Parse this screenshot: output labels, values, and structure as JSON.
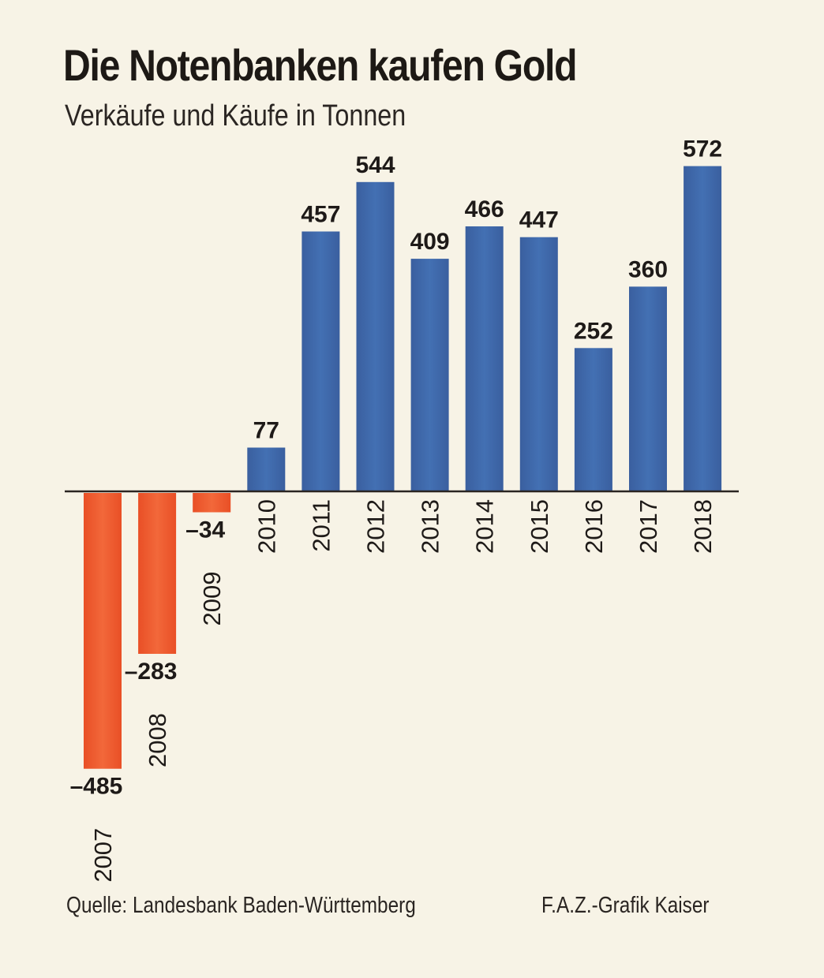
{
  "title": "Die Notenbanken kaufen Gold",
  "subtitle": "Verkäufe und Käufe in Tonnen",
  "source": "Quelle: Landesbank Baden-Württemberg",
  "credit": "F.A.Z.-Grafik Kaiser",
  "colors": {
    "positive": "#3d67ab",
    "negative": "#ee5a2c",
    "axis": "#2a2522",
    "background": "#f7f3e6"
  },
  "chart_data": {
    "type": "bar",
    "categories": [
      "2007",
      "2008",
      "2009",
      "2010",
      "2011",
      "2012",
      "2013",
      "2014",
      "2015",
      "2016",
      "2017",
      "2018"
    ],
    "values": [
      -485,
      -283,
      -34,
      77,
      457,
      544,
      409,
      466,
      447,
      252,
      360,
      572
    ],
    "value_labels": [
      "–485",
      "–283",
      "–34",
      "77",
      "457",
      "544",
      "409",
      "466",
      "447",
      "252",
      "360",
      "572"
    ],
    "ylim": [
      -485,
      572
    ],
    "grid": false,
    "legend": "none",
    "xlabel": "",
    "ylabel": ""
  }
}
